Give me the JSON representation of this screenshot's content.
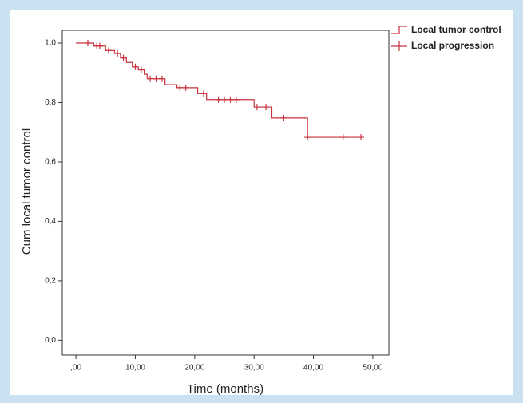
{
  "chart_data": {
    "type": "kaplan-meier",
    "x_label": "Time (months)",
    "y_label": "Cum local tumor control",
    "xlim": [
      -2.3,
      52.7
    ],
    "ylim": [
      -0.05,
      1.043
    ],
    "xticks": [
      {
        "value": 0,
        "label": ",00"
      },
      {
        "value": 10,
        "label": "10,00"
      },
      {
        "value": 20,
        "label": "20,00"
      },
      {
        "value": 30,
        "label": "30,00"
      },
      {
        "value": 40,
        "label": "40,00"
      },
      {
        "value": 50,
        "label": "50,00"
      }
    ],
    "yticks": [
      {
        "value": 0,
        "label": "0,0"
      },
      {
        "value": 0.2,
        "label": "0,2"
      },
      {
        "value": 0.4,
        "label": "0,4"
      },
      {
        "value": 0.6,
        "label": "0,6"
      },
      {
        "value": 0.8,
        "label": "0,8"
      },
      {
        "value": 1.0,
        "label": "1,0"
      }
    ],
    "series": [
      {
        "name": "Local tumor control",
        "color": "#c9323e",
        "style": "step",
        "x": [
          0,
          3,
          5,
          6.5,
          7.5,
          8.5,
          9.5,
          10.5,
          11.5,
          12,
          15,
          17,
          20.5,
          22,
          30,
          33,
          39,
          48
        ],
        "values": [
          1.0,
          0.99,
          0.975,
          0.965,
          0.95,
          0.935,
          0.92,
          0.91,
          0.895,
          0.88,
          0.86,
          0.85,
          0.83,
          0.81,
          0.785,
          0.748,
          0.683,
          0.683
        ]
      },
      {
        "name": "Local progression",
        "color": "#c9323e",
        "style": "censor",
        "x": [
          2,
          3.5,
          4,
          5.5,
          7,
          8,
          10,
          11,
          12.5,
          13.5,
          14.5,
          17.5,
          18.5,
          21.5,
          24,
          25,
          26,
          27,
          30.5,
          32,
          35,
          39,
          45,
          48
        ],
        "values": [
          1.0,
          0.99,
          0.99,
          0.975,
          0.965,
          0.95,
          0.92,
          0.91,
          0.88,
          0.88,
          0.88,
          0.85,
          0.85,
          0.83,
          0.81,
          0.81,
          0.81,
          0.81,
          0.785,
          0.785,
          0.748,
          0.683,
          0.683,
          0.683
        ]
      }
    ]
  }
}
